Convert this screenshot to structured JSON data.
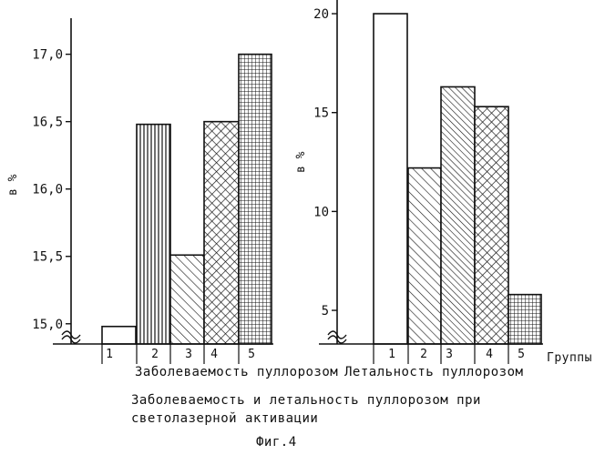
{
  "chart_data": [
    {
      "type": "bar",
      "categories": [
        "1",
        "2",
        "3",
        "4",
        "5"
      ],
      "values": [
        14.98,
        16.48,
        15.51,
        16.5,
        17.0
      ],
      "patterns": [
        "white",
        "vertical-lines",
        "diagonal-hatch",
        "cross-hatch",
        "grid"
      ],
      "yticks": [
        "15,0",
        "15,5",
        "16,0",
        "16,5",
        "17,0"
      ],
      "ytick_values": [
        15.0,
        15.5,
        16.0,
        16.5,
        17.0
      ],
      "ylim": [
        14.85,
        17.2
      ],
      "axis_break": true,
      "ylabel": "в %",
      "xlabel": "Заболеваемость пуллорозом",
      "grid": false
    },
    {
      "type": "bar",
      "categories": [
        "1",
        "2",
        "3",
        "4",
        "5"
      ],
      "values": [
        20.0,
        12.2,
        16.3,
        15.3,
        5.8
      ],
      "patterns": [
        "white",
        "diagonal-hatch",
        "diagonal-hatch-dense",
        "cross-hatch",
        "grid"
      ],
      "yticks": [
        "5",
        "10",
        "15",
        "20"
      ],
      "ytick_values": [
        5,
        10,
        15,
        20
      ],
      "ylim": [
        3.3,
        20.6
      ],
      "axis_break": true,
      "ylabel": "в %",
      "xlabel": "Летальность пуллорозом",
      "grid": false
    }
  ],
  "groups_label": "Группы",
  "caption_line1": "Заболеваемость и летальность  пуллорозом при",
  "caption_line2": "светолазерной активации",
  "figure_label": "Фиг.4"
}
